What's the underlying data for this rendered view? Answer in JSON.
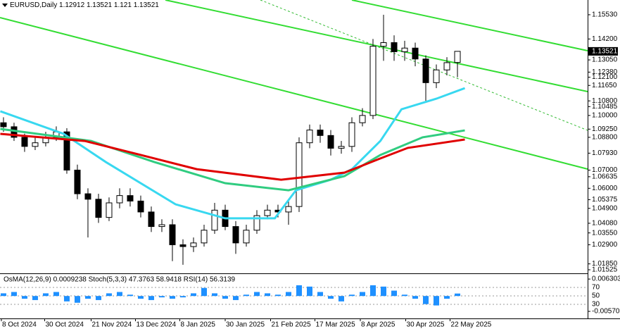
{
  "chart_data": [
    {
      "type": "candlestick",
      "title": "EURUSD,Daily",
      "xlim": [
        -0.33,
        55.33
      ],
      "ylim": [
        1.0133,
        1.1634
      ],
      "xticks": [
        {
          "value": -0.2,
          "label": "8 Oct 2024"
        },
        {
          "value": 3.9,
          "label": "30 Oct 2024"
        },
        {
          "value": 8.3,
          "label": "21 Nov 2024"
        },
        {
          "value": 12.5,
          "label": "13 Dec 2024"
        },
        {
          "value": 16.7,
          "label": "8 Jan 2025"
        },
        {
          "value": 21,
          "label": "30 Jan 2025"
        },
        {
          "value": 25.3,
          "label": "21 Feb 2025"
        },
        {
          "value": 29.5,
          "label": "17 Mar 2025"
        },
        {
          "value": 33.8,
          "label": "8 Apr 2025"
        },
        {
          "value": 38.1,
          "label": "30 Apr 2025"
        },
        {
          "value": 42.3,
          "label": "22 May 2025"
        }
      ],
      "yticks": [
        {
          "value": 1.1553,
          "label": "1.15530"
        },
        {
          "value": 1.142,
          "label": "1.14200"
        },
        {
          "value": 1.1305,
          "label": "1.13050"
        },
        {
          "value": 1.1238,
          "label": "1.12380"
        },
        {
          "value": 1.121,
          "label": "1.12100"
        },
        {
          "value": 1.1165,
          "label": "1.11650"
        },
        {
          "value": 1.108,
          "label": "1.10800"
        },
        {
          "value": 1.10485,
          "label": "1.10485"
        },
        {
          "value": 1.1,
          "label": "1.10000"
        },
        {
          "value": 1.0925,
          "label": "1.09250"
        },
        {
          "value": 1.088,
          "label": "1.08800"
        },
        {
          "value": 1.0793,
          "label": "1.07930"
        },
        {
          "value": 1.07,
          "label": "1.07000"
        },
        {
          "value": 1.06635,
          "label": "1.06635"
        },
        {
          "value": 1.06,
          "label": "1.06000"
        },
        {
          "value": 1.05375,
          "label": "1.05375"
        },
        {
          "value": 1.049,
          "label": "1.04900"
        },
        {
          "value": 1.0408,
          "label": "1.04080"
        },
        {
          "value": 1.0355,
          "label": "1.03550"
        },
        {
          "value": 1.029,
          "label": "1.02900"
        },
        {
          "value": 1.0185,
          "label": "1.01850"
        },
        {
          "value": 1.01525,
          "label": "1.01525"
        }
      ],
      "open": [
        1.096,
        1.0938,
        1.088,
        1.083,
        1.085,
        1.088,
        1.091,
        1.07,
        1.057,
        1.054,
        1.044,
        1.052,
        1.056,
        1.053,
        1.047,
        1.039,
        1.04,
        1.029,
        1.028,
        1.03,
        1.037,
        1.048,
        1.039,
        1.03,
        1.037,
        1.045,
        1.048,
        1.047,
        1.05,
        1.085,
        1.092,
        1.089,
        1.082,
        1.083,
        1.096,
        1.1,
        1.138,
        1.14,
        1.135,
        1.137,
        1.131,
        1.118,
        1.125,
        1.12912
      ],
      "high": [
        1.099,
        1.096,
        1.09,
        1.088,
        1.091,
        1.094,
        1.093,
        1.073,
        1.06,
        1.057,
        1.055,
        1.06,
        1.06,
        1.056,
        1.05,
        1.043,
        1.043,
        1.032,
        1.033,
        1.04,
        1.052,
        1.051,
        1.042,
        1.04,
        1.048,
        1.051,
        1.051,
        1.053,
        1.088,
        1.095,
        1.095,
        1.092,
        1.086,
        1.099,
        1.104,
        1.142,
        1.1553,
        1.144,
        1.141,
        1.14,
        1.133,
        1.128,
        1.132,
        1.13521
      ],
      "low": [
        1.091,
        1.086,
        1.08,
        1.081,
        1.083,
        1.086,
        1.068,
        1.054,
        1.033,
        1.041,
        1.042,
        1.049,
        1.05,
        1.044,
        1.036,
        1.036,
        1.02,
        1.018,
        1.025,
        1.028,
        1.035,
        1.037,
        1.024,
        1.028,
        1.035,
        1.043,
        1.044,
        1.04,
        1.047,
        1.082,
        1.085,
        1.078,
        1.079,
        1.08,
        1.094,
        1.098,
        1.13,
        1.13,
        1.13,
        1.127,
        1.108,
        1.115,
        1.122,
        1.121
      ],
      "close": [
        1.0938,
        1.088,
        1.083,
        1.085,
        1.088,
        1.091,
        1.07,
        1.057,
        1.054,
        1.044,
        1.052,
        1.056,
        1.053,
        1.047,
        1.039,
        1.04,
        1.029,
        1.028,
        1.03,
        1.037,
        1.048,
        1.039,
        1.03,
        1.037,
        1.045,
        1.048,
        1.047,
        1.05,
        1.085,
        1.092,
        1.089,
        1.082,
        1.083,
        1.096,
        1.1,
        1.138,
        1.14,
        1.135,
        1.137,
        1.131,
        1.118,
        1.125,
        1.129,
        1.13521
      ],
      "series": [
        {
          "color": "#38d8f0",
          "x": [
            -0.3,
            5.7,
            9.7,
            16.3,
            21,
            25.7,
            27.7,
            31,
            33,
            35.7,
            37.7,
            41,
            43.7
          ],
          "values": [
            1.1023,
            1.0899,
            1.0744,
            1.0512,
            1.0435,
            1.0435,
            1.0589,
            1.0647,
            1.0705,
            1.086,
            1.1034,
            1.1092,
            1.115
          ]
        },
        {
          "color": "#30cc80",
          "x": [
            -0.3,
            8.3,
            14.3,
            21,
            27,
            32.3,
            35.7,
            39.7,
            43.7
          ],
          "values": [
            1.0926,
            1.086,
            1.0744,
            1.0628,
            1.0589,
            1.0667,
            1.0783,
            1.088,
            1.0918
          ]
        },
        {
          "color": "#e00000",
          "x": [
            -0.3,
            7.7,
            13,
            18.3,
            26.3,
            32.3,
            35.7,
            38.3,
            43.7
          ],
          "values": [
            1.0899,
            1.086,
            1.0783,
            1.0705,
            1.0647,
            1.0686,
            1.0764,
            1.0822,
            1.0868
          ]
        }
      ]
    },
    {
      "type": "bar",
      "title": "OsMA(12,26,9) 0.0009238  Stoch(5,3,3) 47.3763 58.9418  RSI(14) 56.3139",
      "color": "#1e90ff",
      "xlim": [
        -0.33,
        55.33
      ],
      "ylim": [
        -0.0078,
        0.0079
      ],
      "yticks": [
        0.006303,
        -0.005702
      ],
      "y2lim": [
        0,
        100
      ],
      "y2ticks": [
        30,
        50,
        70
      ],
      "values": [
        0.001,
        0.0015,
        -0.001,
        -0.0015,
        0.001,
        0.0015,
        -0.002,
        -0.0025,
        -0.001,
        -0.0015,
        0.001,
        0.0015,
        0.0005,
        -0.001,
        -0.0015,
        -0.0005,
        -0.001,
        -0.0005,
        0.001,
        0.003,
        0.001,
        -0.001,
        -0.0015,
        0.0005,
        0.0015,
        0.001,
        0.0005,
        0.0015,
        0.004,
        0.0035,
        0.0015,
        -0.001,
        -0.002,
        0.0005,
        0.0015,
        0.004,
        0.0035,
        0.002,
        0.0005,
        -0.001,
        -0.003,
        -0.0035,
        -0.001,
        0.0009238
      ]
    }
  ]
}
